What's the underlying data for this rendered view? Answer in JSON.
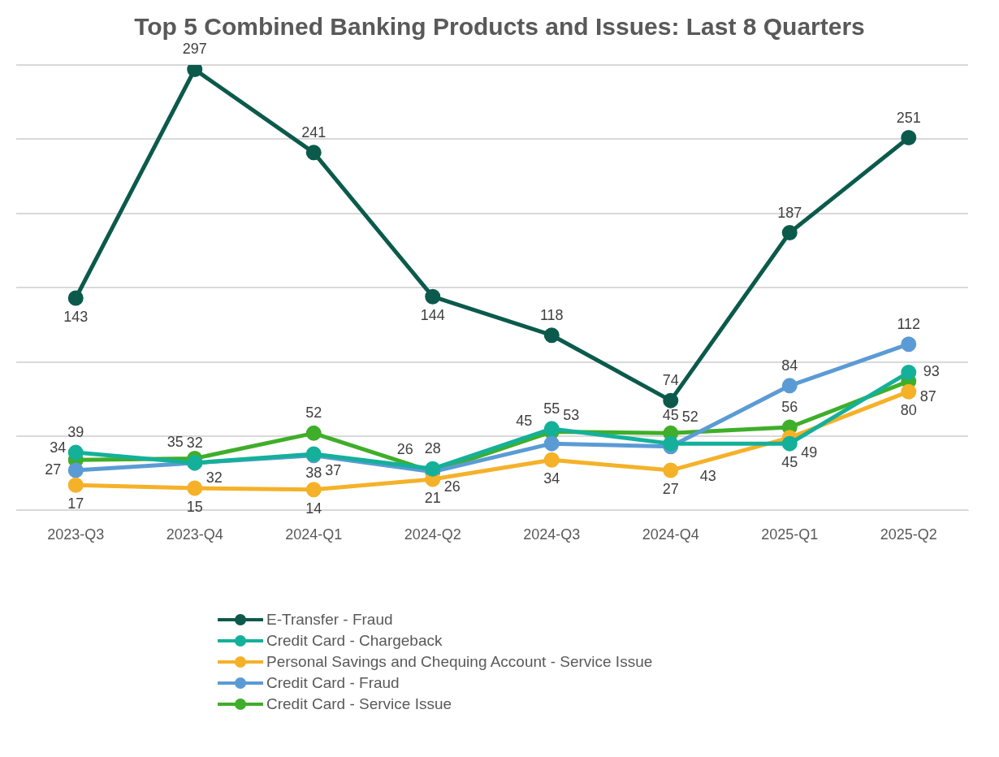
{
  "chart_data": {
    "type": "line",
    "title": "Top 5 Combined Banking Products and Issues: Last 8 Quarters",
    "categories": [
      "2023-Q3",
      "2023-Q4",
      "2024-Q1",
      "2024-Q2",
      "2024-Q3",
      "2024-Q4",
      "2025-Q1",
      "2025-Q2"
    ],
    "series": [
      {
        "name": "E-Transfer - Fraud",
        "color": "#0b5a4c",
        "values": [
          143,
          297,
          241,
          144,
          118,
          74,
          187,
          251
        ]
      },
      {
        "name": "Credit Card - Chargeback",
        "color": "#14b09a",
        "values": [
          39,
          32,
          38,
          28,
          55,
          45,
          45,
          93
        ]
      },
      {
        "name": "Personal Savings and Chequing Account - Service Issue",
        "color": "#f5b128",
        "values": [
          17,
          15,
          14,
          21,
          34,
          27,
          49,
          80
        ]
      },
      {
        "name": "Credit Card - Fraud",
        "color": "#5b9bd5",
        "values": [
          27,
          32,
          37,
          26,
          45,
          43,
          84,
          112
        ]
      },
      {
        "name": "Credit Card - Service Issue",
        "color": "#3fae2a",
        "values": [
          34,
          35,
          52,
          26,
          53,
          52,
          56,
          87
        ]
      }
    ],
    "ylim": [
      0,
      300
    ],
    "yticks": [
      {
        "value": 0,
        "label": null
      },
      {
        "value": 50,
        "label": null
      },
      {
        "value": 100,
        "label": null
      },
      {
        "value": 150,
        "label": null
      },
      {
        "value": 200,
        "label": null
      },
      {
        "value": 250,
        "label": null
      },
      {
        "value": 300,
        "label": null
      }
    ],
    "tick_labels": "x",
    "grid": "y",
    "legend": "bottom",
    "marker": "circle",
    "line_style": "solid",
    "data_labels": true
  }
}
